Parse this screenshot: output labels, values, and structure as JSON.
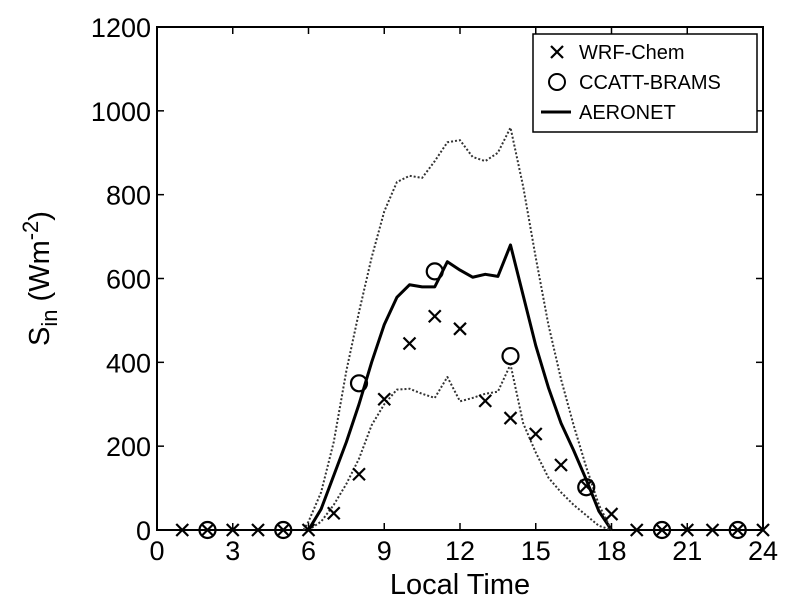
{
  "chart_data": {
    "type": "line",
    "xlabel": "Local Time",
    "ylabel": {
      "main": "S",
      "sub": "in",
      "unit_open": " (Wm",
      "unit_sup": "-2",
      "unit_close": ")"
    },
    "xlim": [
      0,
      24
    ],
    "ylim": [
      0,
      1200
    ],
    "xticks": [
      0,
      3,
      6,
      9,
      12,
      15,
      18,
      21,
      24
    ],
    "yticks": [
      0,
      200,
      400,
      600,
      800,
      1000,
      1200
    ],
    "grid": false,
    "legend_position": "top-right",
    "series": [
      {
        "name": "WRF-Chem",
        "marker": "x",
        "x": [
          1,
          2,
          3,
          4,
          5,
          6,
          7,
          8,
          9,
          10,
          11,
          12,
          13,
          14,
          15,
          16,
          17,
          18,
          19,
          20,
          21,
          22,
          23,
          24
        ],
        "y": [
          0,
          0,
          0,
          0,
          0,
          0,
          40,
          133,
          312,
          445,
          510,
          480,
          308,
          267,
          229,
          155,
          105,
          38,
          0,
          0,
          0,
          0,
          0,
          0
        ]
      },
      {
        "name": "CCATT-BRAMS",
        "marker": "o",
        "x": [
          2,
          5,
          8,
          11,
          14,
          17,
          20,
          23
        ],
        "y": [
          0,
          0,
          350,
          617,
          415,
          102,
          0,
          0
        ]
      },
      {
        "name": "AERONET",
        "style": "solid",
        "x": [
          6,
          6.5,
          7,
          7.5,
          8,
          8.5,
          9,
          9.5,
          10,
          10.5,
          11,
          11.5,
          12,
          12.5,
          13,
          13.5,
          14,
          14.5,
          15,
          15.5,
          16,
          16.5,
          17,
          17.5,
          18
        ],
        "y": [
          0,
          50,
          130,
          210,
          300,
          400,
          490,
          555,
          585,
          580,
          580,
          640,
          620,
          603,
          610,
          605,
          680,
          560,
          440,
          340,
          255,
          190,
          120,
          45,
          0
        ]
      },
      {
        "style": "dotted",
        "x": [
          5.8,
          6,
          6.5,
          7,
          7.5,
          8,
          8.5,
          9,
          9.5,
          10,
          10.5,
          11,
          11.5,
          12,
          12.5,
          13,
          13.5,
          14,
          14.5,
          15,
          15.5,
          16,
          16.5,
          17,
          17.5,
          18
        ],
        "y": [
          0,
          20,
          90,
          210,
          380,
          520,
          650,
          760,
          830,
          845,
          840,
          880,
          925,
          930,
          890,
          880,
          900,
          960,
          820,
          650,
          490,
          360,
          250,
          150,
          60,
          0
        ]
      },
      {
        "style": "dotted",
        "x": [
          6,
          6.5,
          7,
          7.5,
          8,
          8.5,
          9,
          9.5,
          10,
          10.5,
          11,
          11.5,
          12,
          12.5,
          13,
          13.5,
          14,
          14.5,
          15,
          15.5,
          16,
          16.5,
          17,
          17.5,
          18
        ],
        "y": [
          0,
          20,
          60,
          110,
          170,
          250,
          300,
          335,
          337,
          325,
          315,
          365,
          307,
          315,
          325,
          330,
          395,
          255,
          185,
          125,
          90,
          60,
          35,
          10,
          0
        ]
      }
    ]
  }
}
